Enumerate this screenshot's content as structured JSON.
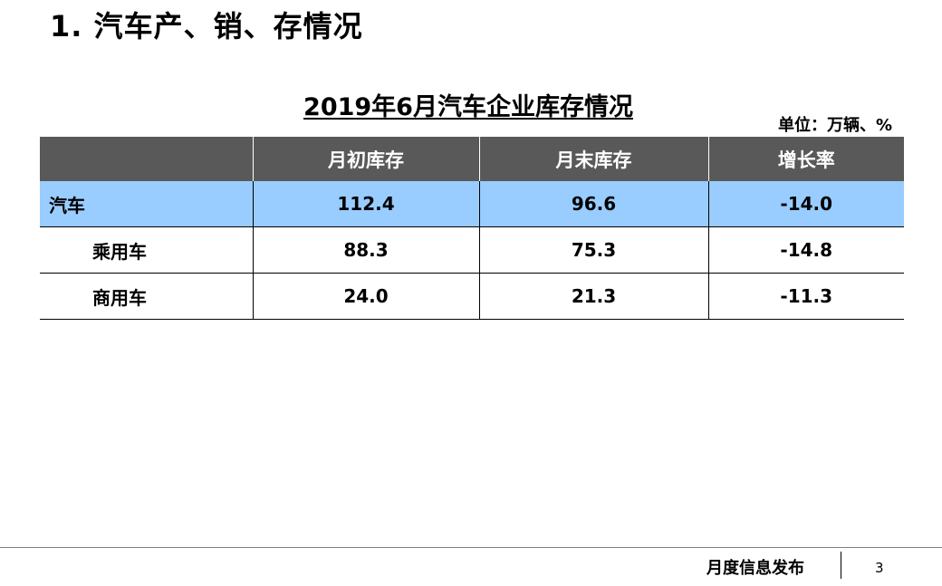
{
  "slide": {
    "title": "1. 汽车产、销、存情况"
  },
  "table": {
    "title": "2019年6月汽车企业库存情况",
    "unit": "单位：万辆、%",
    "header_bg": "#595959",
    "highlight_bg": "#99ccff",
    "columns": [
      "",
      "月初库存",
      "月末库存",
      "增长率"
    ],
    "rows": [
      {
        "label": "汽车",
        "start": "112.4",
        "end": "96.6",
        "growth": "-14.0"
      },
      {
        "label": "乘用车",
        "start": "88.3",
        "end": "75.3",
        "growth": "-14.8"
      },
      {
        "label": "商用车",
        "start": "24.0",
        "end": "21.3",
        "growth": "-11.3"
      }
    ]
  },
  "footer": {
    "label": "月度信息发布",
    "page_number": "3"
  }
}
